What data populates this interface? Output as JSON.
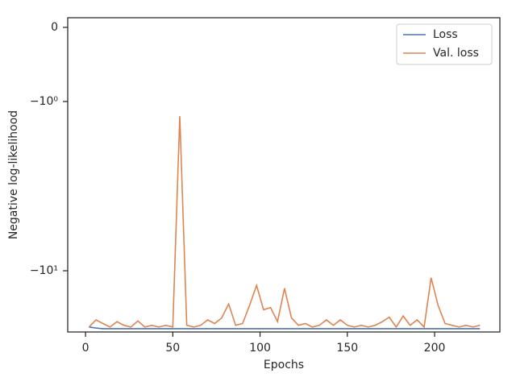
{
  "chart_data": {
    "type": "line",
    "xlabel": "Epochs",
    "ylabel": "Negative log-likelihood",
    "yscale": "symlog",
    "xlim": [
      -10.2,
      237.4
    ],
    "xticks": [
      0,
      50,
      100,
      150,
      200
    ],
    "ylim": [
      -23,
      0.13
    ],
    "yticks": [
      0,
      {
        "value": -1,
        "label": "−10⁰"
      },
      {
        "value": -10,
        "label": "−10¹"
      }
    ],
    "legend": "upper right",
    "x": [
      2,
      6,
      10,
      14,
      18,
      22,
      26,
      30,
      34,
      38,
      42,
      46,
      50,
      54,
      58,
      62,
      66,
      70,
      74,
      78,
      82,
      86,
      90,
      94,
      98,
      102,
      106,
      110,
      114,
      118,
      122,
      126,
      130,
      134,
      138,
      142,
      146,
      150,
      154,
      158,
      162,
      166,
      170,
      174,
      178,
      182,
      186,
      190,
      194,
      198,
      202,
      206,
      210,
      214,
      218,
      222,
      226
    ],
    "series": [
      {
        "name": "Loss",
        "color": "#4c72b0",
        "values": [
          -21.5,
          -21.8,
          -22,
          -22,
          -22,
          -22,
          -22,
          -22,
          -22,
          -22,
          -22,
          -22,
          -22,
          -22,
          -22,
          -22,
          -22,
          -22,
          -22,
          -22,
          -22,
          -22,
          -22,
          -22,
          -22,
          -22,
          -22,
          -22,
          -22,
          -22,
          -22,
          -22,
          -22,
          -22,
          -22,
          -22,
          -22,
          -22,
          -22,
          -22,
          -22,
          -22,
          -22,
          -22,
          -22,
          -22,
          -22,
          -22,
          -22,
          -22,
          -22,
          -22,
          -22,
          -22,
          -22,
          -22,
          -22
        ]
      },
      {
        "name": "Val. loss",
        "color": "#dd8452",
        "values": [
          -21.5,
          -19.5,
          -20.5,
          -21.5,
          -20,
          -21,
          -21.5,
          -19.8,
          -21.5,
          -21,
          -21.5,
          -21,
          -21.5,
          -1.22,
          -21,
          -21.5,
          -21,
          -19.5,
          -20.5,
          -19,
          -15.7,
          -21,
          -20.5,
          -16,
          -12.2,
          -17,
          -16.5,
          -20,
          -12.7,
          -19,
          -21,
          -20.5,
          -21.5,
          -21,
          -19.5,
          -21,
          -19.5,
          -21,
          -21.5,
          -21,
          -21.5,
          -21,
          -20,
          -18.8,
          -21.5,
          -18.5,
          -21,
          -19.5,
          -21.5,
          -11,
          -16,
          -20.5,
          -21,
          -21.5,
          -21,
          -21.5,
          -21
        ]
      }
    ]
  }
}
